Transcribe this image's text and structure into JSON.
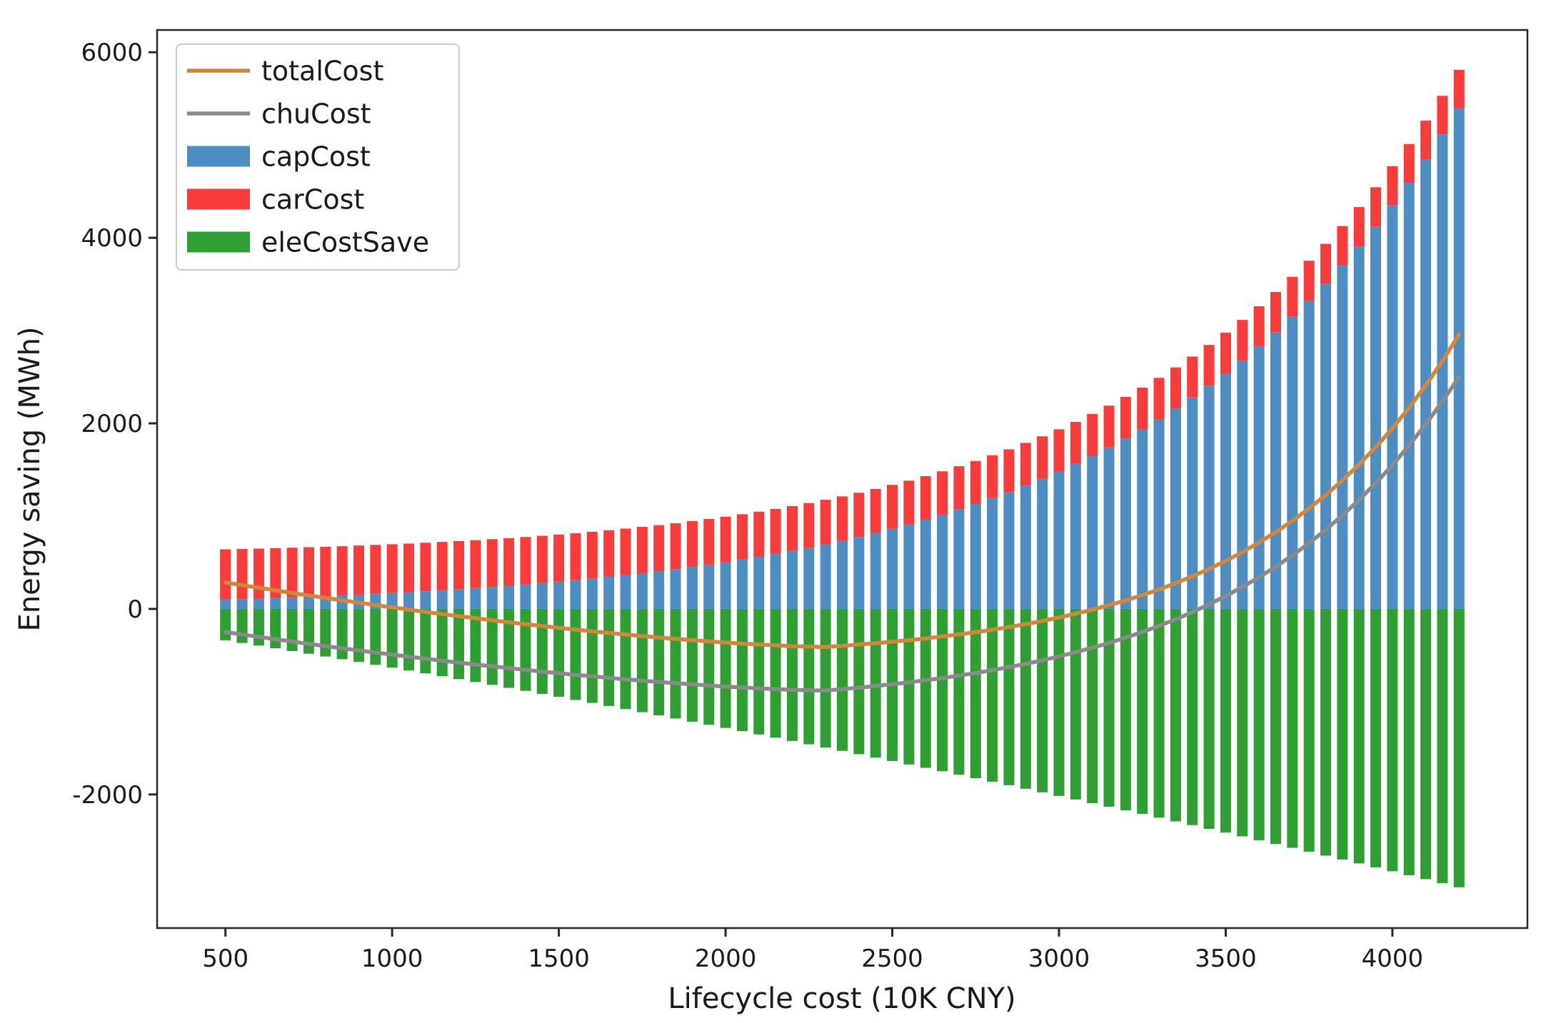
{
  "figure": {
    "background": "#ffffff",
    "frame_color": "#262626"
  },
  "chart_data": {
    "type": "bar",
    "subtype": "stacked-bars-with-lines",
    "title": "",
    "xlabel": "Lifecycle cost (10K CNY)",
    "ylabel": "Energy saving (MWh)",
    "xlim": [
      295,
      4405
    ],
    "ylim": [
      -3440,
      6240
    ],
    "xticks": [
      500,
      1000,
      1500,
      2000,
      2500,
      3000,
      3500,
      4000
    ],
    "yticks": [
      -2000,
      0,
      2000,
      4000,
      6000
    ],
    "grid": false,
    "legend_position": "upper left",
    "bar_step": 50,
    "x": [
      500,
      550,
      600,
      650,
      700,
      750,
      800,
      850,
      900,
      950,
      1000,
      1050,
      1100,
      1150,
      1200,
      1250,
      1300,
      1350,
      1400,
      1450,
      1500,
      1550,
      1600,
      1650,
      1700,
      1750,
      1800,
      1850,
      1900,
      1950,
      2000,
      2050,
      2100,
      2150,
      2200,
      2250,
      2300,
      2350,
      2400,
      2450,
      2500,
      2550,
      2600,
      2650,
      2700,
      2750,
      2800,
      2850,
      2900,
      2950,
      3000,
      3050,
      3100,
      3150,
      3200,
      3250,
      3300,
      3350,
      3400,
      3450,
      3500,
      3550,
      3600,
      3650,
      3700,
      3750,
      3800,
      3850,
      3900,
      3950,
      4000,
      4050,
      4100,
      4150,
      4200
    ],
    "series": [
      {
        "name": "totalCost",
        "type": "line",
        "color": "#d0873d",
        "values": [
          285,
          256,
          228,
          200,
          172,
          145,
          119,
          92,
          67,
          41,
          17,
          -8,
          -32,
          -55,
          -78,
          -100,
          -122,
          -144,
          -164,
          -184,
          -204,
          -223,
          -241,
          -259,
          -276,
          -293,
          -308,
          -323,
          -337,
          -350,
          -363,
          -374,
          -384,
          -393,
          -401,
          -407,
          -410,
          -398,
          -384,
          -370,
          -354,
          -337,
          -318,
          -297,
          -275,
          -251,
          -224,
          -195,
          -164,
          -130,
          -93,
          -52,
          -8,
          40,
          92,
          149,
          210,
          278,
          351,
          431,
          518,
          612,
          716,
          828,
          950,
          1083,
          1228,
          1385,
          1557,
          1744,
          1947,
          2168,
          2410,
          2672,
          2958
        ]
      },
      {
        "name": "chuCost",
        "type": "line",
        "color": "#8a8a8a",
        "values": [
          -250,
          -276,
          -302,
          -327,
          -352,
          -377,
          -401,
          -424,
          -448,
          -471,
          -493,
          -515,
          -537,
          -558,
          -579,
          -599,
          -619,
          -638,
          -657,
          -676,
          -693,
          -711,
          -727,
          -743,
          -759,
          -774,
          -788,
          -801,
          -814,
          -826,
          -837,
          -847,
          -857,
          -865,
          -872,
          -877,
          -880,
          -865,
          -849,
          -831,
          -812,
          -791,
          -769,
          -745,
          -719,
          -691,
          -660,
          -627,
          -592,
          -554,
          -512,
          -467,
          -419,
          -367,
          -310,
          -249,
          -183,
          -112,
          -35,
          49,
          139,
          236,
          341,
          455,
          577,
          709,
          853,
          1008,
          1175,
          1355,
          1551,
          1762,
          1990,
          2236,
          2502
        ]
      },
      {
        "name": "capCost",
        "type": "bar",
        "stack": "positive-base",
        "color": "#4d8dc2",
        "values": [
          100,
          106,
          111,
          118,
          124,
          131,
          138,
          146,
          154,
          163,
          172,
          181,
          191,
          202,
          213,
          225,
          237,
          250,
          264,
          279,
          294,
          310,
          328,
          346,
          365,
          385,
          406,
          429,
          453,
          478,
          504,
          532,
          561,
          593,
          625,
          660,
          696,
          735,
          776,
          819,
          864,
          912,
          962,
          1016,
          1072,
          1131,
          1194,
          1260,
          1330,
          1403,
          1481,
          1563,
          1650,
          1741,
          1837,
          1939,
          2046,
          2160,
          2279,
          2406,
          2539,
          2679,
          2828,
          2984,
          3149,
          3324,
          3508,
          3702,
          3907,
          4123,
          4352,
          4593,
          4847,
          5115,
          5398
        ]
      },
      {
        "name": "carCost",
        "type": "bar",
        "stack": "on-top-of-capCost",
        "color": "#f83c3c",
        "values": [
          542,
          541,
          539,
          537,
          536,
          534,
          532,
          530,
          529,
          527,
          525,
          523,
          522,
          520,
          518,
          516,
          515,
          513,
          511,
          509,
          508,
          506,
          504,
          502,
          501,
          499,
          497,
          495,
          494,
          492,
          490,
          488,
          487,
          485,
          483,
          481,
          480,
          478,
          476,
          474,
          473,
          471,
          469,
          467,
          466,
          464,
          462,
          460,
          459,
          457,
          455,
          453,
          452,
          450,
          448,
          446,
          445,
          443,
          441,
          439,
          438,
          436,
          434,
          432,
          431,
          429,
          427,
          425,
          424,
          422,
          420,
          418,
          417,
          415,
          413
        ]
      },
      {
        "name": "eleCostSave",
        "type": "bar",
        "stack": "negative",
        "color": "#2f9e33",
        "values": [
          -338,
          -367,
          -395,
          -424,
          -454,
          -483,
          -513,
          -542,
          -572,
          -602,
          -633,
          -664,
          -694,
          -725,
          -757,
          -788,
          -819,
          -851,
          -883,
          -916,
          -948,
          -981,
          -1013,
          -1046,
          -1080,
          -1113,
          -1147,
          -1181,
          -1215,
          -1249,
          -1283,
          -1318,
          -1353,
          -1388,
          -1423,
          -1459,
          -1494,
          -1530,
          -1566,
          -1603,
          -1639,
          -1676,
          -1713,
          -1750,
          -1787,
          -1825,
          -1862,
          -1900,
          -1938,
          -1977,
          -2015,
          -2054,
          -2093,
          -2132,
          -2171,
          -2210,
          -2250,
          -2290,
          -2330,
          -2370,
          -2411,
          -2452,
          -2493,
          -2534,
          -2575,
          -2617,
          -2659,
          -2701,
          -2743,
          -2785,
          -2828,
          -2870,
          -2913,
          -2957,
          -3000
        ]
      }
    ]
  }
}
